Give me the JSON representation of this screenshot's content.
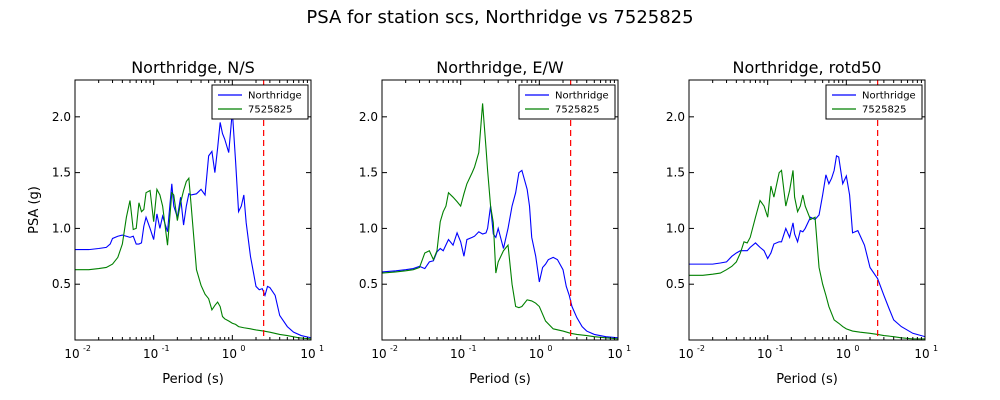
{
  "suptitle": "PSA for station scs, Northridge vs 7525825",
  "chart_data": [
    {
      "type": "line",
      "title": "Northridge, N/S",
      "xlabel": "Period (s)",
      "ylabel": "PSA (g)",
      "xscale": "log",
      "xlim": [
        0.01,
        10
      ],
      "ylim": [
        0,
        2.33
      ],
      "yticks": [
        0.5,
        1.0,
        1.5,
        2.0
      ],
      "xtick_exponents": [
        "-2",
        "-1",
        "0",
        "1"
      ],
      "vline": 2.5,
      "legend": "top-right",
      "series": [
        {
          "name": "Northridge",
          "color": "#0000ff",
          "x": [
            0.01,
            0.015,
            0.02,
            0.025,
            0.028,
            0.03,
            0.035,
            0.04,
            0.045,
            0.05,
            0.055,
            0.06,
            0.065,
            0.07,
            0.075,
            0.08,
            0.09,
            0.1,
            0.11,
            0.12,
            0.13,
            0.15,
            0.17,
            0.18,
            0.2,
            0.22,
            0.24,
            0.26,
            0.28,
            0.3,
            0.35,
            0.4,
            0.45,
            0.5,
            0.55,
            0.6,
            0.65,
            0.7,
            0.75,
            0.8,
            0.9,
            1.0,
            1.1,
            1.2,
            1.3,
            1.4,
            1.5,
            1.7,
            2.0,
            2.2,
            2.4,
            2.6,
            2.8,
            3.0,
            3.5,
            4.0,
            5.0,
            6.0,
            7.5,
            10.0
          ],
          "y": [
            0.81,
            0.81,
            0.82,
            0.83,
            0.86,
            0.91,
            0.93,
            0.94,
            0.93,
            0.92,
            0.93,
            0.86,
            0.86,
            0.87,
            1.02,
            1.1,
            1.0,
            0.9,
            1.13,
            1.0,
            1.11,
            0.97,
            1.4,
            1.2,
            1.1,
            1.28,
            1.03,
            1.2,
            1.31,
            1.3,
            1.31,
            1.35,
            1.3,
            1.65,
            1.69,
            1.5,
            1.72,
            1.95,
            1.85,
            1.8,
            1.68,
            2.05,
            1.6,
            1.15,
            1.2,
            1.3,
            1.05,
            0.75,
            0.48,
            0.45,
            0.46,
            0.4,
            0.48,
            0.47,
            0.4,
            0.22,
            0.12,
            0.07,
            0.04,
            0.02
          ]
        },
        {
          "name": "7525825",
          "color": "#008000",
          "x": [
            0.01,
            0.015,
            0.02,
            0.025,
            0.03,
            0.035,
            0.04,
            0.045,
            0.05,
            0.055,
            0.06,
            0.065,
            0.07,
            0.075,
            0.08,
            0.09,
            0.1,
            0.11,
            0.12,
            0.13,
            0.15,
            0.17,
            0.18,
            0.2,
            0.22,
            0.24,
            0.26,
            0.28,
            0.3,
            0.35,
            0.4,
            0.45,
            0.5,
            0.55,
            0.6,
            0.65,
            0.7,
            0.75,
            0.8,
            0.9,
            1.0,
            1.1,
            1.2,
            1.4,
            1.7,
            2.0,
            2.5,
            3.0,
            4.0,
            5.0,
            7.0,
            10.0
          ],
          "y": [
            0.63,
            0.63,
            0.64,
            0.65,
            0.68,
            0.74,
            0.86,
            1.1,
            1.25,
            0.99,
            1.0,
            1.23,
            1.15,
            1.17,
            1.32,
            1.34,
            1.06,
            1.35,
            1.3,
            1.2,
            0.85,
            1.32,
            1.3,
            1.07,
            1.23,
            1.34,
            1.42,
            1.45,
            1.2,
            0.63,
            0.49,
            0.41,
            0.37,
            0.27,
            0.31,
            0.34,
            0.3,
            0.21,
            0.19,
            0.17,
            0.15,
            0.14,
            0.12,
            0.11,
            0.1,
            0.09,
            0.08,
            0.07,
            0.05,
            0.04,
            0.02,
            0.01
          ]
        }
      ]
    },
    {
      "type": "line",
      "title": "Northridge, E/W",
      "xlabel": "Period (s)",
      "ylabel": "",
      "xscale": "log",
      "xlim": [
        0.01,
        10
      ],
      "ylim": [
        0,
        2.33
      ],
      "yticks": [
        0.5,
        1.0,
        1.5,
        2.0
      ],
      "xtick_exponents": [
        "-2",
        "-1",
        "0",
        "1"
      ],
      "vline": 2.5,
      "legend": "top-right",
      "series": [
        {
          "name": "Northridge",
          "color": "#0000ff",
          "x": [
            0.01,
            0.015,
            0.02,
            0.025,
            0.03,
            0.035,
            0.04,
            0.045,
            0.05,
            0.055,
            0.06,
            0.07,
            0.08,
            0.09,
            0.1,
            0.11,
            0.12,
            0.14,
            0.15,
            0.17,
            0.19,
            0.21,
            0.22,
            0.24,
            0.26,
            0.28,
            0.3,
            0.35,
            0.4,
            0.45,
            0.5,
            0.55,
            0.6,
            0.7,
            0.75,
            0.8,
            0.9,
            1.0,
            1.1,
            1.2,
            1.3,
            1.5,
            1.7,
            2.0,
            2.2,
            2.4,
            2.6,
            3.0,
            3.5,
            4.0,
            5.0,
            7.0,
            10.0
          ],
          "y": [
            0.61,
            0.62,
            0.63,
            0.64,
            0.66,
            0.64,
            0.7,
            0.71,
            0.79,
            0.82,
            0.8,
            0.9,
            0.85,
            0.96,
            0.88,
            0.75,
            0.9,
            0.92,
            0.93,
            0.97,
            0.95,
            0.96,
            1.0,
            1.2,
            0.95,
            0.92,
            1.0,
            0.82,
            1.0,
            1.2,
            1.32,
            1.5,
            1.52,
            1.35,
            1.2,
            0.92,
            0.75,
            0.52,
            0.65,
            0.68,
            0.72,
            0.74,
            0.72,
            0.63,
            0.48,
            0.4,
            0.3,
            0.2,
            0.12,
            0.08,
            0.05,
            0.03,
            0.02
          ]
        },
        {
          "name": "7525825",
          "color": "#008000",
          "x": [
            0.01,
            0.015,
            0.02,
            0.025,
            0.03,
            0.035,
            0.04,
            0.045,
            0.05,
            0.055,
            0.06,
            0.065,
            0.07,
            0.08,
            0.09,
            0.1,
            0.11,
            0.12,
            0.14,
            0.15,
            0.17,
            0.19,
            0.21,
            0.22,
            0.24,
            0.26,
            0.28,
            0.3,
            0.35,
            0.4,
            0.45,
            0.5,
            0.55,
            0.6,
            0.7,
            0.8,
            0.9,
            1.0,
            1.2,
            1.5,
            2.0,
            2.5,
            3.0,
            4.0,
            5.0,
            7.0,
            10.0
          ],
          "y": [
            0.6,
            0.61,
            0.62,
            0.63,
            0.65,
            0.78,
            0.8,
            0.72,
            0.8,
            1.06,
            1.15,
            1.2,
            1.32,
            1.28,
            1.24,
            1.2,
            1.31,
            1.4,
            1.5,
            1.55,
            1.68,
            2.12,
            1.72,
            1.52,
            1.2,
            1.05,
            0.6,
            0.7,
            0.8,
            0.85,
            0.5,
            0.3,
            0.29,
            0.3,
            0.36,
            0.35,
            0.33,
            0.3,
            0.17,
            0.1,
            0.08,
            0.06,
            0.05,
            0.04,
            0.03,
            0.02,
            0.01
          ]
        }
      ]
    },
    {
      "type": "line",
      "title": "Northridge, rotd50",
      "xlabel": "Period (s)",
      "ylabel": "",
      "xscale": "log",
      "xlim": [
        0.01,
        10
      ],
      "ylim": [
        0,
        2.33
      ],
      "yticks": [
        0.5,
        1.0,
        1.5,
        2.0
      ],
      "xtick_exponents": [
        "-2",
        "-1",
        "0",
        "1"
      ],
      "vline": 2.5,
      "legend": "top-right",
      "series": [
        {
          "name": "Northridge",
          "color": "#0000ff",
          "x": [
            0.01,
            0.015,
            0.02,
            0.025,
            0.03,
            0.035,
            0.04,
            0.045,
            0.05,
            0.055,
            0.06,
            0.07,
            0.08,
            0.09,
            0.1,
            0.11,
            0.12,
            0.14,
            0.15,
            0.17,
            0.19,
            0.21,
            0.22,
            0.24,
            0.26,
            0.28,
            0.3,
            0.35,
            0.4,
            0.45,
            0.5,
            0.55,
            0.6,
            0.65,
            0.7,
            0.75,
            0.8,
            0.9,
            1.0,
            1.1,
            1.2,
            1.4,
            1.7,
            2.0,
            2.5,
            3.0,
            3.5,
            4.0,
            5.0,
            7.0,
            10.0
          ],
          "y": [
            0.68,
            0.68,
            0.68,
            0.69,
            0.7,
            0.75,
            0.78,
            0.8,
            0.8,
            0.8,
            0.83,
            0.87,
            0.83,
            0.8,
            0.73,
            0.78,
            0.86,
            0.88,
            0.88,
            1.0,
            0.92,
            1.05,
            0.95,
            0.88,
            0.98,
            0.97,
            1.0,
            1.1,
            1.08,
            1.12,
            1.3,
            1.48,
            1.4,
            1.45,
            1.52,
            1.65,
            1.64,
            1.4,
            1.47,
            1.3,
            0.96,
            0.98,
            0.85,
            0.65,
            0.55,
            0.4,
            0.28,
            0.18,
            0.12,
            0.06,
            0.03
          ]
        },
        {
          "name": "7525825",
          "color": "#008000",
          "x": [
            0.01,
            0.015,
            0.02,
            0.025,
            0.03,
            0.035,
            0.04,
            0.045,
            0.05,
            0.055,
            0.06,
            0.07,
            0.08,
            0.09,
            0.1,
            0.11,
            0.12,
            0.14,
            0.15,
            0.17,
            0.19,
            0.21,
            0.22,
            0.24,
            0.26,
            0.28,
            0.3,
            0.35,
            0.4,
            0.45,
            0.5,
            0.55,
            0.6,
            0.7,
            0.8,
            0.9,
            1.0,
            1.2,
            1.5,
            2.0,
            2.5,
            3.0,
            4.0,
            5.0,
            7.0,
            10.0
          ],
          "y": [
            0.58,
            0.58,
            0.59,
            0.6,
            0.63,
            0.66,
            0.7,
            0.78,
            0.88,
            0.87,
            0.92,
            1.1,
            1.25,
            1.2,
            1.1,
            1.38,
            1.28,
            1.5,
            1.52,
            1.2,
            1.34,
            1.52,
            1.28,
            1.15,
            1.2,
            1.3,
            1.2,
            1.08,
            1.1,
            0.65,
            0.5,
            0.4,
            0.3,
            0.18,
            0.15,
            0.12,
            0.1,
            0.08,
            0.07,
            0.06,
            0.05,
            0.04,
            0.03,
            0.02,
            0.01,
            0.01
          ]
        }
      ]
    }
  ]
}
